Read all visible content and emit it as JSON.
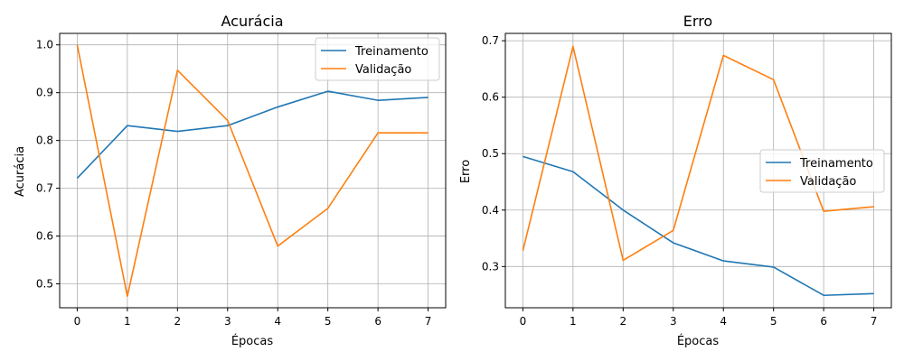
{
  "colors": {
    "train": "#1f77b4",
    "val": "#ff7f0e"
  },
  "chart_data": [
    {
      "type": "line",
      "title": "Acurácia",
      "xlabel": "Épocas",
      "ylabel": "Acurácia",
      "x": [
        0,
        1,
        2,
        3,
        4,
        5,
        6,
        7
      ],
      "xlim": [
        -0.35,
        7.35
      ],
      "ylim": [
        0.45,
        1.024
      ],
      "yticks": [
        0.5,
        0.6,
        0.7,
        0.8,
        0.9,
        1.0
      ],
      "ytick_labels": [
        "0.5",
        "0.6",
        "0.7",
        "0.8",
        "0.9",
        "1.0"
      ],
      "xtick_labels": [
        "0",
        "1",
        "2",
        "3",
        "4",
        "5",
        "6",
        "7"
      ],
      "grid": true,
      "legend": "top-right",
      "series": [
        {
          "name": "Treinamento",
          "color": "#1f77b4",
          "values": [
            0.721,
            0.831,
            0.819,
            0.831,
            0.87,
            0.903,
            0.884,
            0.89
          ]
        },
        {
          "name": "Validação",
          "color": "#ff7f0e",
          "values": [
            1.0,
            0.474,
            0.947,
            0.842,
            0.579,
            0.658,
            0.816,
            0.816
          ]
        }
      ]
    },
    {
      "type": "line",
      "title": "Erro",
      "xlabel": "Épocas",
      "ylabel": "Erro",
      "x": [
        0,
        1,
        2,
        3,
        4,
        5,
        6,
        7
      ],
      "xlim": [
        -0.35,
        7.35
      ],
      "ylim": [
        0.227,
        0.713
      ],
      "yticks": [
        0.3,
        0.4,
        0.5,
        0.6,
        0.7
      ],
      "ytick_labels": [
        "0.3",
        "0.4",
        "0.5",
        "0.6",
        "0.7"
      ],
      "xtick_labels": [
        "0",
        "1",
        "2",
        "3",
        "4",
        "5",
        "6",
        "7"
      ],
      "grid": true,
      "legend": "center-right",
      "series": [
        {
          "name": "Treinamento",
          "color": "#1f77b4",
          "values": [
            0.495,
            0.468,
            0.4,
            0.342,
            0.31,
            0.299,
            0.249,
            0.252
          ]
        },
        {
          "name": "Validação",
          "color": "#ff7f0e",
          "values": [
            0.328,
            0.69,
            0.311,
            0.364,
            0.674,
            0.631,
            0.398,
            0.406
          ]
        }
      ]
    }
  ]
}
